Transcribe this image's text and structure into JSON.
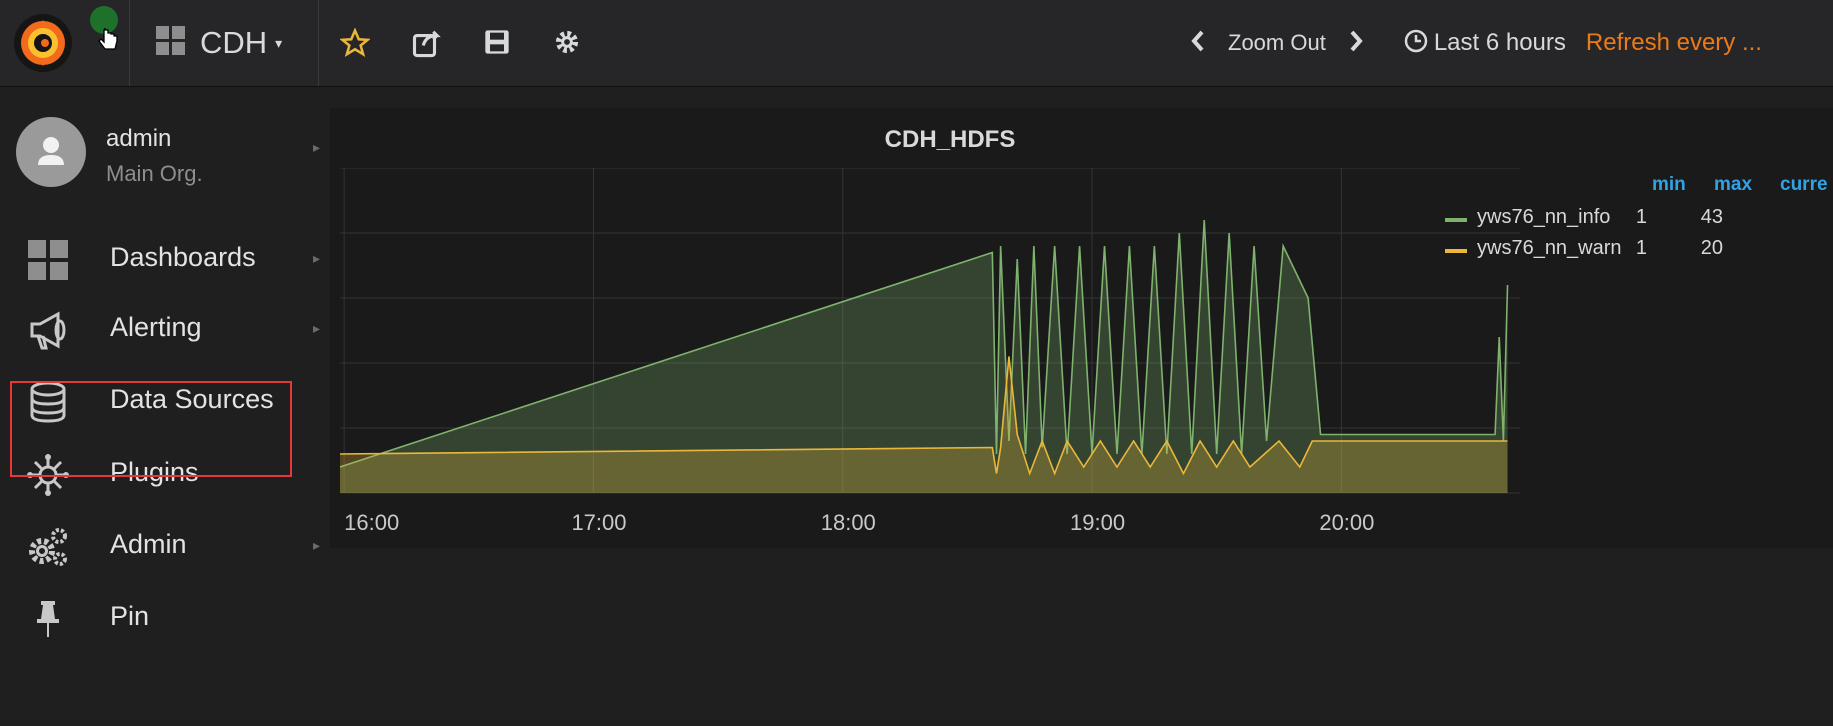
{
  "topbar": {
    "dashboard_title": "CDH",
    "caret": "▾",
    "zoom_out": "Zoom Out",
    "time_range": "Last 6 hours",
    "refresh": "Refresh every ...",
    "icons": [
      "grafana-logo-icon",
      "star-icon",
      "share-icon",
      "save-icon",
      "settings-icon",
      "chevron-left-icon",
      "chevron-right-icon",
      "clock-icon"
    ]
  },
  "sidemenu": {
    "user": {
      "name": "admin",
      "org": "Main Org."
    },
    "items": [
      {
        "label": "Dashboards",
        "icon": "dashboards-icon",
        "has_submenu": true
      },
      {
        "label": "Alerting",
        "icon": "alerting-megaphone-icon",
        "has_submenu": true
      },
      {
        "label": "Data Sources",
        "icon": "database-icon",
        "has_submenu": false,
        "highlighted": true
      },
      {
        "label": "Plugins",
        "icon": "plugins-icon",
        "has_submenu": false
      },
      {
        "label": "Admin",
        "icon": "admin-cogs-icon",
        "has_submenu": true
      },
      {
        "label": "Pin",
        "icon": "pin-icon",
        "has_submenu": false
      }
    ]
  },
  "panel": {
    "title": "CDH_HDFS",
    "legend": {
      "headers": [
        "min",
        "max",
        "curre"
      ],
      "rows": [
        {
          "name": "yws76_nn_info",
          "min": "1",
          "max": "43",
          "color": "#7eb26d"
        },
        {
          "name": "yws76_nn_warn",
          "min": "1",
          "max": "20",
          "color": "#eab839"
        }
      ]
    }
  },
  "chart_data": {
    "type": "area",
    "title": "CDH_HDFS",
    "x_ticks": [
      "16:00",
      "17:00",
      "18:00",
      "19:00",
      "20:00"
    ],
    "series": [
      {
        "name": "yws76_nn_info",
        "color": "#7eb26d",
        "x": [
          "15:59",
          "18:36",
          "18:37",
          "18:38",
          "18:40",
          "18:42",
          "18:44",
          "18:46",
          "18:48",
          "18:51",
          "18:54",
          "18:57",
          "19:00",
          "19:03",
          "19:06",
          "19:09",
          "19:12",
          "19:15",
          "19:18",
          "19:21",
          "19:24",
          "19:27",
          "19:30",
          "19:33",
          "19:36",
          "19:39",
          "19:42",
          "19:46",
          "19:52",
          "19:55",
          "20:37",
          "20:38",
          "20:39",
          "20:40"
        ],
        "values": [
          4,
          37,
          6,
          38,
          8,
          36,
          6,
          38,
          7,
          38,
          6,
          38,
          6,
          38,
          6,
          38,
          6,
          38,
          6,
          40,
          6,
          42,
          6,
          40,
          6,
          38,
          8,
          38,
          30,
          9,
          9,
          24,
          8,
          32
        ]
      },
      {
        "name": "yws76_nn_warn",
        "color": "#eab839",
        "x": [
          "15:59",
          "18:36",
          "18:37",
          "18:38",
          "18:40",
          "18:42",
          "18:45",
          "18:48",
          "18:51",
          "18:54",
          "18:58",
          "19:02",
          "19:06",
          "19:10",
          "19:14",
          "19:18",
          "19:22",
          "19:26",
          "19:30",
          "19:34",
          "19:38",
          "19:45",
          "19:50",
          "19:53",
          "20:37",
          "20:40"
        ],
        "values": [
          6,
          7,
          3,
          7,
          21,
          9,
          3,
          8,
          3,
          8,
          4,
          8,
          4,
          8,
          4,
          8,
          3,
          8,
          4,
          8,
          4,
          8,
          4,
          8,
          8,
          8
        ]
      }
    ],
    "x_range": [
      "15:59",
      "20:43"
    ],
    "y_range": [
      0,
      50
    ],
    "grid": true,
    "legend_position": "right"
  }
}
